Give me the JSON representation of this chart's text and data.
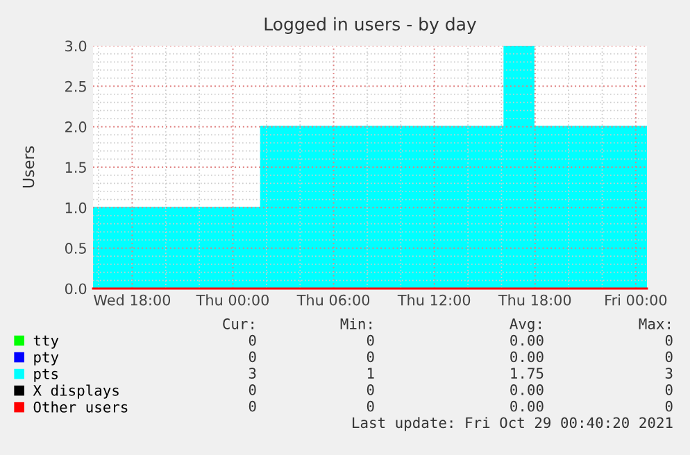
{
  "chart_data": {
    "type": "area",
    "title": "Logged in users - by day",
    "ylabel": "Users",
    "x": [
      "2021-10-27T15:40",
      "2021-10-28T01:40",
      "2021-10-28T01:40",
      "2021-10-28T16:10",
      "2021-10-28T16:10",
      "2021-10-28T17:55",
      "2021-10-28T17:55",
      "2021-10-29T00:40"
    ],
    "series": [
      {
        "name": "tty",
        "type": "line",
        "color": "#00ff00",
        "values": [
          null,
          null,
          null,
          null,
          null,
          null,
          null,
          null
        ]
      },
      {
        "name": "pty",
        "type": "line",
        "color": "#0000ff",
        "values": [
          null,
          null,
          null,
          null,
          null,
          null,
          null,
          null
        ]
      },
      {
        "name": "pts",
        "color": "#00ffff",
        "values": [
          1,
          1,
          2,
          2,
          3,
          3,
          2,
          2
        ]
      },
      {
        "name": "X displays",
        "type": "line",
        "color": "#000000",
        "values": [
          null,
          null,
          null,
          null,
          null,
          null,
          null,
          null
        ]
      },
      {
        "name": "Other users",
        "type": "line",
        "color": "#ff0000",
        "values": [
          0,
          0,
          0,
          0,
          0,
          0,
          0,
          0
        ]
      }
    ],
    "xlim": [
      "2021-10-27T15:40",
      "2021-10-29T00:40"
    ],
    "xticks": [
      {
        "value": "2021-10-27T18:00",
        "label": "Wed 18:00"
      },
      {
        "value": "2021-10-28T00:00",
        "label": "Thu 00:00"
      },
      {
        "value": "2021-10-28T06:00",
        "label": "Thu 06:00"
      },
      {
        "value": "2021-10-28T12:00",
        "label": "Thu 12:00"
      },
      {
        "value": "2021-10-28T18:00",
        "label": "Thu 18:00"
      },
      {
        "value": "2021-10-29T00:00",
        "label": "Fri 00:00"
      }
    ],
    "ylim": [
      0,
      3
    ],
    "yticks": [
      {
        "value": 0,
        "label": "0.0"
      },
      {
        "value": 0.5,
        "label": "0.5"
      },
      {
        "value": 1,
        "label": "1.0"
      },
      {
        "value": 1.5,
        "label": "1.5"
      },
      {
        "value": 2,
        "label": "2.0"
      },
      {
        "value": 2.5,
        "label": "2.5"
      },
      {
        "value": 3,
        "label": "3.0"
      }
    ],
    "grid": true,
    "legend": "bottom left",
    "annotations": [
      "Cur:",
      "Min:",
      "Avg:",
      "Max:",
      "0",
      "0",
      "0.00",
      "0",
      "0",
      "0",
      "0.00",
      "0",
      "3",
      "1",
      "1.75",
      "3",
      "0",
      "0",
      "0.00",
      "0",
      "0",
      "0",
      "0.00",
      "0",
      "Last update: Fri Oct 29 00:40:20 2021"
    ]
  }
}
